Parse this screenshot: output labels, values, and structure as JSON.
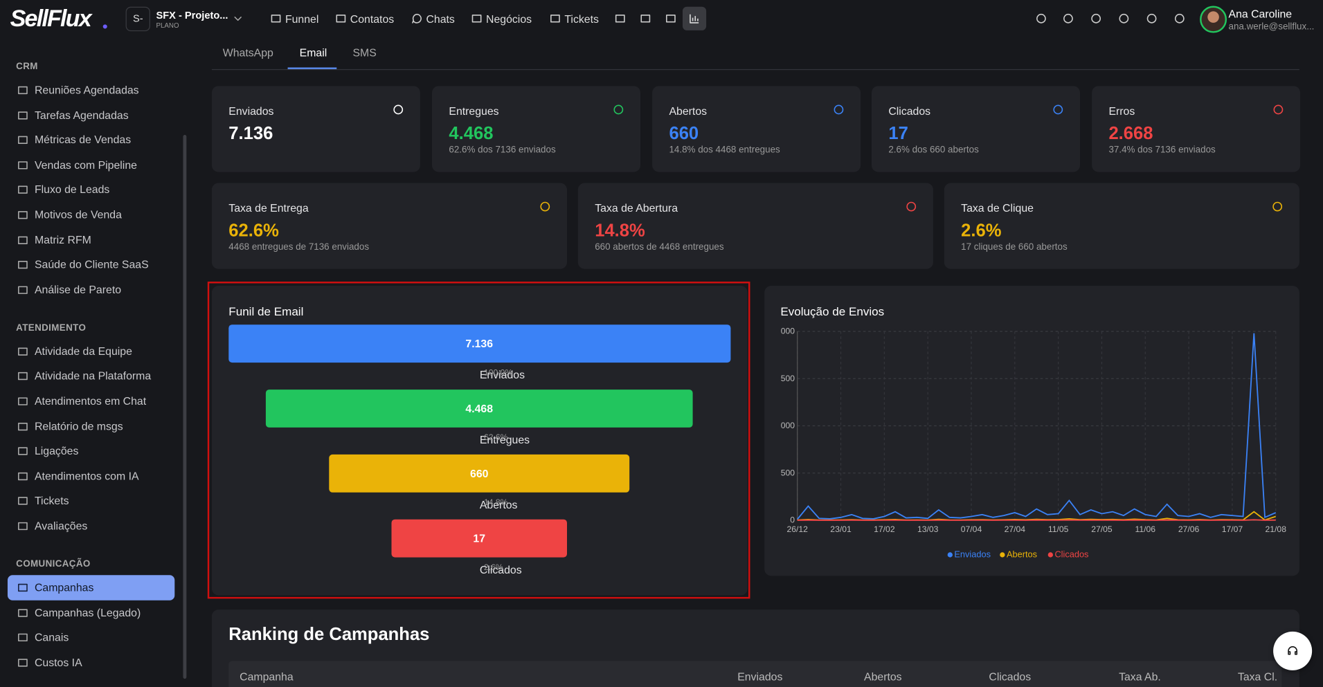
{
  "top_bar": {
    "logo": "SellFlux",
    "project_badge": "S-",
    "project_name": "SFX - Projeto...",
    "project_plan": "PLANO",
    "nav": [
      "Funnel",
      "Contatos",
      "Chats",
      "Negócios",
      "Tickets"
    ],
    "user_name": "Ana Caroline",
    "user_email": "ana.werle@sellflux..."
  },
  "sidebar": {
    "sections": [
      {
        "title": "CRM",
        "items": [
          {
            "label": "Reuniões Agendadas"
          },
          {
            "label": "Tarefas Agendadas"
          },
          {
            "label": "Métricas de Vendas"
          },
          {
            "label": "Vendas com Pipeline"
          },
          {
            "label": "Fluxo de Leads"
          },
          {
            "label": "Motivos de Venda"
          },
          {
            "label": "Matriz RFM"
          },
          {
            "label": "Saúde do Cliente SaaS"
          },
          {
            "label": "Análise de Pareto"
          }
        ]
      },
      {
        "title": "ATENDIMENTO",
        "items": [
          {
            "label": "Atividade da Equipe"
          },
          {
            "label": "Atividade na Plataforma"
          },
          {
            "label": "Atendimentos em Chat"
          },
          {
            "label": "Relatório de msgs"
          },
          {
            "label": "Ligações"
          },
          {
            "label": "Atendimentos com IA"
          },
          {
            "label": "Tickets"
          },
          {
            "label": "Avaliações"
          }
        ]
      },
      {
        "title": "COMUNICAÇÃO",
        "items": [
          {
            "label": "Campanhas",
            "active": true
          },
          {
            "label": "Campanhas (Legado)"
          },
          {
            "label": "Canais"
          },
          {
            "label": "Custos IA"
          }
        ]
      }
    ]
  },
  "tabs": [
    {
      "label": "WhatsApp"
    },
    {
      "label": "Email",
      "selected": true
    },
    {
      "label": "SMS"
    }
  ],
  "stat_cards": [
    {
      "label": "Enviados",
      "value": "7.136",
      "color": "#ffffff"
    },
    {
      "label": "Entregues",
      "value": "4.468",
      "subtitle": "62.6% dos 7136 enviados",
      "color": "#22c55e"
    },
    {
      "label": "Abertos",
      "value": "660",
      "subtitle": "14.8% dos 4468 entregues",
      "color": "#3b82f6"
    },
    {
      "label": "Clicados",
      "value": "17",
      "subtitle": "2.6% dos 660 abertos",
      "color": "#3b82f6"
    },
    {
      "label": "Erros",
      "value": "2.668",
      "subtitle": "37.4% dos 7136 enviados",
      "color": "#ef4444"
    }
  ],
  "rate_cards": [
    {
      "label": "Taxa de Entrega",
      "value": "62.6%",
      "subtitle": "4468 entregues de 7136 enviados",
      "color": "#eab308"
    },
    {
      "label": "Taxa de Abertura",
      "value": "14.8%",
      "subtitle": "660 abertos de 4468 entregues",
      "color": "#ef4444"
    },
    {
      "label": "Taxa de Clique",
      "value": "2.6%",
      "subtitle": "17 cliques de 660 abertos",
      "color": "#eab308"
    }
  ],
  "funnel": {
    "title": "Funil de Email",
    "stages": [
      {
        "name": "Enviados",
        "value": 7136,
        "value_label": "7.136",
        "percent": "100.0%",
        "color": "#3b82f6"
      },
      {
        "name": "Entregues",
        "value": 4468,
        "value_label": "4.468",
        "percent": "62.6%",
        "color": "#22c55e"
      },
      {
        "name": "Abertos",
        "value": 660,
        "value_label": "660",
        "percent": "14.8%",
        "color": "#eab308"
      },
      {
        "name": "Clicados",
        "value": 17,
        "value_label": "17",
        "percent": "2.6%",
        "color": "#ef4444"
      }
    ]
  },
  "evolution_chart": {
    "type": "line",
    "title": "Evolução de Envios",
    "categories": [
      "26/12",
      null,
      null,
      null,
      "23/01",
      null,
      null,
      null,
      "17/02",
      null,
      null,
      null,
      "13/03",
      null,
      null,
      null,
      "07/04",
      null,
      null,
      null,
      "27/04",
      null,
      null,
      null,
      "11/05",
      null,
      null,
      null,
      "27/05",
      null,
      null,
      null,
      "11/06",
      null,
      null,
      null,
      "27/06",
      null,
      null,
      null,
      "17/07",
      null,
      null,
      null,
      "21/08"
    ],
    "series": [
      {
        "name": "Enviados",
        "color": "#3b82f6",
        "values": [
          10,
          150,
          20,
          15,
          30,
          60,
          20,
          15,
          40,
          90,
          25,
          30,
          20,
          110,
          30,
          25,
          40,
          60,
          30,
          50,
          80,
          40,
          120,
          60,
          70,
          210,
          60,
          110,
          70,
          90,
          50,
          120,
          60,
          40,
          170,
          50,
          40,
          70,
          30,
          60,
          50,
          40,
          1980,
          30,
          80
        ]
      },
      {
        "name": "Abertos",
        "color": "#eab308",
        "values": [
          2,
          8,
          3,
          2,
          4,
          6,
          3,
          2,
          5,
          8,
          3,
          4,
          3,
          10,
          4,
          3,
          5,
          6,
          4,
          5,
          8,
          5,
          10,
          6,
          7,
          15,
          6,
          10,
          7,
          9,
          5,
          12,
          6,
          4,
          20,
          5,
          4,
          7,
          3,
          6,
          5,
          4,
          90,
          3,
          40
        ]
      },
      {
        "name": "Clicados",
        "color": "#ef4444",
        "values": [
          0,
          1,
          0,
          0,
          0,
          1,
          0,
          0,
          1,
          1,
          0,
          0,
          0,
          1,
          0,
          0,
          1,
          1,
          0,
          1,
          1,
          0,
          2,
          1,
          1,
          3,
          1,
          1,
          1,
          1,
          0,
          2,
          1,
          0,
          2,
          1,
          0,
          1,
          0,
          1,
          1,
          0,
          5,
          0,
          2
        ]
      }
    ],
    "ylim": [
      0,
      2000
    ],
    "yticks": [
      0,
      {
        "value": 500,
        "label": "500"
      },
      {
        "value": 1000,
        "label": "000"
      },
      {
        "value": 1500,
        "label": "500"
      },
      {
        "value": 2000,
        "label": "000"
      }
    ],
    "grid": true
  },
  "ranking": {
    "title": "Ranking de Campanhas",
    "columns": [
      "Campanha",
      "Enviados",
      "Abertos",
      "Clicados",
      "Taxa Ab.",
      "Taxa Cl."
    ]
  }
}
